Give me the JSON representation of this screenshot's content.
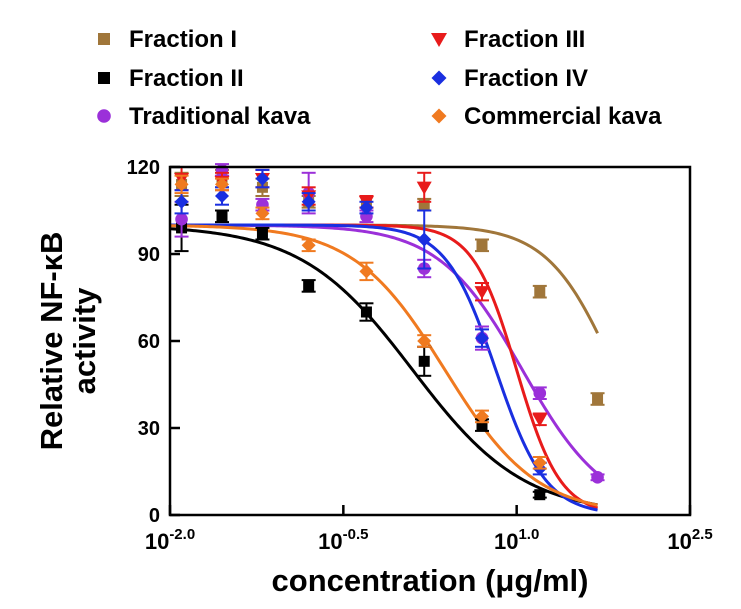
{
  "chart_data": {
    "type": "scatter",
    "xscale": "log",
    "xlim_log10": [
      -2.0,
      2.5
    ],
    "ylim": [
      0,
      120
    ],
    "xticks": [
      {
        "mantissa": "10",
        "exp": "-2.0",
        "log10": -2.0
      },
      {
        "mantissa": "10",
        "exp": "-0.5",
        "log10": -0.5
      },
      {
        "mantissa": "10",
        "exp": "1.0",
        "log10": 1.0
      },
      {
        "mantissa": "10",
        "exp": "2.5",
        "log10": 2.5
      }
    ],
    "yticks": [
      "0",
      "30",
      "60",
      "90",
      "120"
    ],
    "ytick_values": [
      0,
      30,
      60,
      90,
      120
    ],
    "xlabel": "concentration (μg/ml)",
    "ylabel_line1": "Relative NF-κB",
    "ylabel_line2": "activity",
    "legend_position": "top",
    "series": [
      {
        "name": "Fraction I",
        "color": "#a0763a",
        "marker": "square",
        "points": [
          [
            -1.9,
            114
          ],
          [
            -1.55,
            116
          ],
          [
            -1.2,
            113
          ],
          [
            -0.8,
            108
          ],
          [
            -0.3,
            108
          ],
          [
            0.2,
            107
          ],
          [
            0.7,
            93
          ],
          [
            1.2,
            77
          ],
          [
            1.7,
            40
          ]
        ],
        "errors": [
          4,
          3,
          3,
          2,
          2,
          2,
          2,
          2,
          2
        ],
        "fit": {
          "top": 100,
          "bottom": 0,
          "logEC50": 1.85,
          "hill": 1.5
        }
      },
      {
        "name": "Fraction II",
        "color": "#000000",
        "marker": "square",
        "points": [
          [
            -1.9,
            99
          ],
          [
            -1.55,
            103
          ],
          [
            -1.2,
            97
          ],
          [
            -0.8,
            79
          ],
          [
            -0.3,
            70
          ],
          [
            0.2,
            53
          ],
          [
            0.7,
            31
          ],
          [
            1.2,
            7
          ]
        ],
        "errors": [
          8,
          2,
          2,
          2,
          3,
          5,
          2,
          1
        ],
        "fit": {
          "top": 100,
          "bottom": 0,
          "logEC50": 0.1,
          "hill": 0.9
        }
      },
      {
        "name": "Traditional kava",
        "color": "#9b30d9",
        "marker": "circle",
        "points": [
          [
            -1.9,
            102
          ],
          [
            -1.55,
            119
          ],
          [
            -1.2,
            107
          ],
          [
            -0.8,
            111
          ],
          [
            -0.3,
            103
          ],
          [
            0.2,
            85
          ],
          [
            0.7,
            61
          ],
          [
            1.2,
            42
          ],
          [
            1.7,
            13
          ]
        ],
        "errors": [
          6,
          2,
          2,
          7,
          2,
          3,
          4,
          2,
          1
        ],
        "fit": {
          "top": 100,
          "bottom": 0,
          "logEC50": 1.05,
          "hill": 1.2
        }
      },
      {
        "name": "Fraction III",
        "color": "#e81b1b",
        "marker": "triangle-down",
        "points": [
          [
            -1.9,
            116
          ],
          [
            -1.55,
            115
          ],
          [
            -1.2,
            116
          ],
          [
            -0.8,
            110
          ],
          [
            -0.3,
            108
          ],
          [
            0.2,
            113
          ],
          [
            0.7,
            77
          ],
          [
            1.2,
            33
          ]
        ],
        "errors": [
          4,
          3,
          3,
          3,
          2,
          5,
          3,
          2
        ],
        "fit": {
          "top": 100,
          "bottom": 0,
          "logEC50": 1.0,
          "hill": 2.3
        }
      },
      {
        "name": "Fraction IV",
        "color": "#1a2fe0",
        "marker": "diamond",
        "points": [
          [
            -1.9,
            108
          ],
          [
            -1.55,
            110
          ],
          [
            -1.2,
            116
          ],
          [
            -0.8,
            108
          ],
          [
            -0.3,
            106
          ],
          [
            0.2,
            95
          ],
          [
            0.7,
            61
          ],
          [
            1.2,
            16
          ]
        ],
        "errors": [
          4,
          3,
          3,
          3,
          2,
          10,
          3,
          2
        ],
        "fit": {
          "top": 100,
          "bottom": 0,
          "logEC50": 0.82,
          "hill": 2.0
        }
      },
      {
        "name": "Commercial kava",
        "color": "#f07a20",
        "marker": "diamond",
        "points": [
          [
            -1.9,
            114
          ],
          [
            -1.55,
            114
          ],
          [
            -1.2,
            104
          ],
          [
            -0.8,
            93
          ],
          [
            -0.3,
            84
          ],
          [
            0.2,
            60
          ],
          [
            0.7,
            34
          ],
          [
            1.2,
            18
          ]
        ],
        "errors": [
          3,
          2,
          2,
          2,
          3,
          2,
          2,
          2
        ],
        "fit": {
          "top": 100,
          "bottom": 0,
          "logEC50": 0.38,
          "hill": 1.1
        }
      }
    ]
  }
}
